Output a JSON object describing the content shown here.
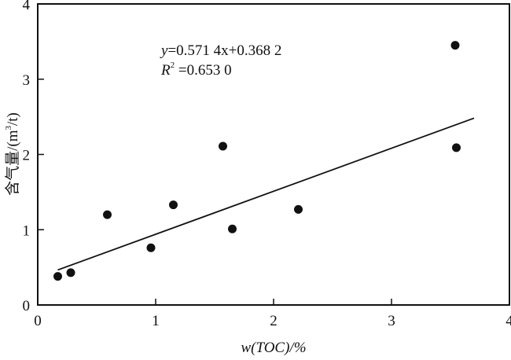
{
  "chart_data": {
    "type": "scatter",
    "title": "",
    "xlabel": "w(TOC)/%",
    "ylabel": "含气量/(m³/t)",
    "ylabel_parts": {
      "main": "含气量/(m",
      "sup": "3",
      "end": "/t)"
    },
    "xlim": [
      0,
      4
    ],
    "ylim": [
      0,
      4
    ],
    "xticks": [
      "0",
      "1",
      "2",
      "3",
      "4"
    ],
    "yticks": [
      "0",
      "1",
      "2",
      "3",
      "4"
    ],
    "grid": false,
    "points": [
      {
        "x": 0.17,
        "y": 0.38
      },
      {
        "x": 0.28,
        "y": 0.43
      },
      {
        "x": 0.59,
        "y": 1.2
      },
      {
        "x": 0.96,
        "y": 0.76
      },
      {
        "x": 1.15,
        "y": 1.33
      },
      {
        "x": 1.57,
        "y": 2.11
      },
      {
        "x": 1.65,
        "y": 1.01
      },
      {
        "x": 2.21,
        "y": 1.27
      },
      {
        "x": 3.54,
        "y": 3.45
      },
      {
        "x": 3.55,
        "y": 2.09
      }
    ],
    "fit": {
      "slope": 0.5714,
      "intercept": 0.3682,
      "x_range": [
        0.17,
        3.7
      ]
    },
    "annotation": {
      "equation": "=0.571 4x+0.368 2",
      "equation_y": "y",
      "r2_label": "R",
      "r2_sup": "2",
      "r2_value": " =0.653 0"
    }
  }
}
